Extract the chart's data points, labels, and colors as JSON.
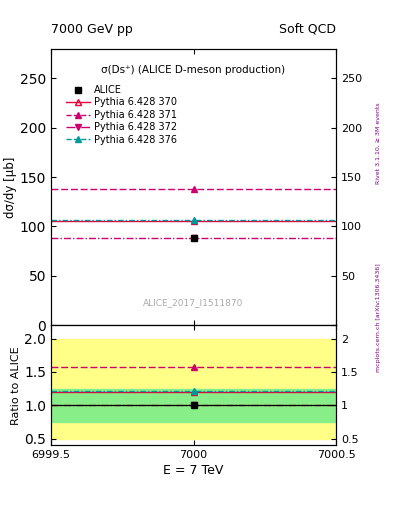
{
  "title_top": "7000 GeV pp",
  "title_right": "Soft QCD",
  "annotation": "σ(Ds⁺) (ALICE D-meson production)",
  "ref_label": "ALICE_2017_I1511870",
  "xlabel": "E = 7 TeV",
  "ylabel_main": "dσ∕dy [µb]",
  "ylabel_ratio": "Ratio to ALICE",
  "right_label": "mcplots.cern.ch [arXiv:1306.3436]",
  "rivet_label": "Rivet 3.1.10, ≥ 3M events",
  "xmin": 6999.5,
  "xmax": 7000.5,
  "x_data": 7000.0,
  "ylim_main": [
    0,
    280
  ],
  "ylim_ratio": [
    0.4,
    2.2
  ],
  "yticks_main": [
    0,
    50,
    100,
    150,
    200,
    250
  ],
  "yticks_ratio": [
    0.5,
    1,
    1.5,
    2
  ],
  "xticks": [
    6999.5,
    7000,
    7000.5
  ],
  "alice_value": 88.0,
  "alice_error_stat": 0,
  "series": [
    {
      "label": "Pythia 6.428 370",
      "value": 106.0,
      "color": "#e8003a",
      "linestyle": "-",
      "marker": "^",
      "fillstyle": "none"
    },
    {
      "label": "Pythia 6.428 371",
      "value": 138.0,
      "color": "#cc006e",
      "linestyle": "--",
      "marker": "^",
      "fillstyle": "full"
    },
    {
      "label": "Pythia 6.428 372",
      "value": 88.0,
      "color": "#cc006e",
      "linestyle": "-.",
      "marker": "v",
      "fillstyle": "full"
    },
    {
      "label": "Pythia 6.428 376",
      "value": 107.0,
      "color": "#009999",
      "linestyle": "--",
      "marker": "^",
      "fillstyle": "full"
    }
  ],
  "green_band": [
    0.75,
    1.25
  ],
  "yellow_band": [
    0.5,
    2.0
  ]
}
